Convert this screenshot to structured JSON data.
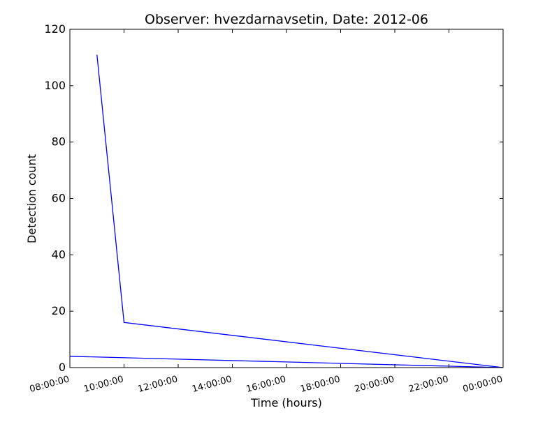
{
  "chart_data": {
    "type": "line",
    "title": "Observer: hvezdarnavsetin, Date: 2012-06",
    "xlabel": "Time (hours)",
    "ylabel": "Detection count",
    "ylim": [
      0,
      120
    ],
    "xlim": [
      "08:00:00",
      "00:00:00"
    ],
    "x_tick_labels": [
      "08:00:00",
      "10:00:00",
      "12:00:00",
      "14:00:00",
      "16:00:00",
      "18:00:00",
      "20:00:00",
      "22:00:00",
      "00:00:00"
    ],
    "y_ticks": [
      0,
      20,
      40,
      60,
      80,
      100,
      120
    ],
    "grid": false,
    "line_color": "#0000ff",
    "series": [
      {
        "x": [
          "09:00:00",
          "10:00:00",
          "00:00:00",
          "08:00:00"
        ],
        "values": [
          111,
          16,
          0,
          4
        ]
      }
    ]
  }
}
